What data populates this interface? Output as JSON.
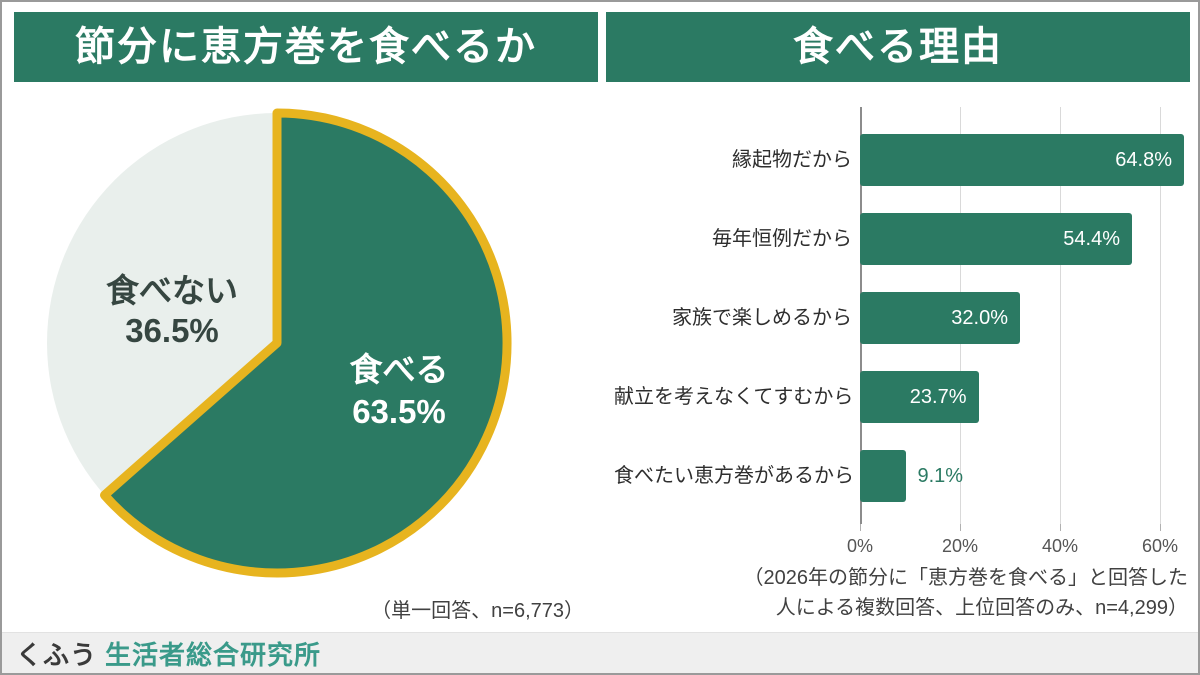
{
  "panels": {
    "left": {
      "title": "節分に恵方巻を食べるか",
      "note": "（単一回答、n=6,773）"
    },
    "right": {
      "title": "食べる理由",
      "note_line1": "（2026年の節分に「恵方巻を食べる」と回答した",
      "note_line2": "人による複数回答、上位回答のみ、n=4,299）"
    }
  },
  "footer": {
    "logo_kufu": "くふう",
    "logo_institute": "生活者総合研究所"
  },
  "colors": {
    "green": "#2b7a63",
    "pie_outline_yellow": "#e7b41f",
    "pie_light_slice": "#e9efec",
    "logo_teal": "#3a9a8a"
  },
  "chart_data": [
    {
      "type": "pie",
      "title": "節分に恵方巻を食べるか",
      "slices": [
        {
          "label": "食べる",
          "value": 63.5,
          "display": "63.5%",
          "color": "#2b7a63"
        },
        {
          "label": "食べない",
          "value": 36.5,
          "display": "36.5%",
          "color": "#e9efec"
        }
      ],
      "start_angle_deg": 0,
      "direction": "clockwise",
      "outline_color": "#e7b41f",
      "note": "（単一回答、n=6,773）"
    },
    {
      "type": "bar",
      "orientation": "horizontal",
      "title": "食べる理由",
      "categories": [
        "縁起物だから",
        "毎年恒例だから",
        "家族で楽しめるから",
        "献立を考えなくてすむから",
        "食べたい恵方巻があるから"
      ],
      "values": [
        64.8,
        54.4,
        32.0,
        23.7,
        9.1
      ],
      "value_labels": [
        "64.8%",
        "54.4%",
        "32.0%",
        "23.7%",
        "9.1%"
      ],
      "x_ticks": [
        "0%",
        "20%",
        "40%",
        "60%"
      ],
      "x_tick_values": [
        0,
        20,
        40,
        60
      ],
      "xlim": [
        0,
        66
      ],
      "grid": true,
      "note": "（2026年の節分に「恵方巻を食べる」と回答した人による複数回答、上位回答のみ、n=4,299）"
    }
  ]
}
